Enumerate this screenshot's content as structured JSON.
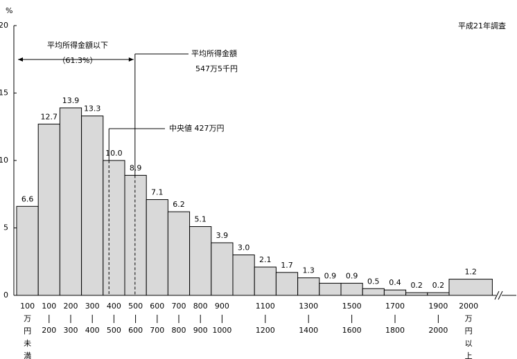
{
  "chart_data": {
    "type": "bar",
    "y_unit": "%",
    "note": "平成21年調査",
    "categories": [
      [
        "100",
        "万",
        "円",
        "未",
        "満"
      ],
      [
        "100",
        "200"
      ],
      [
        "200",
        "300"
      ],
      [
        "300",
        "400"
      ],
      [
        "400",
        "500"
      ],
      [
        "500",
        "600"
      ],
      [
        "600",
        "700"
      ],
      [
        "700",
        "800"
      ],
      [
        "800",
        "900"
      ],
      [
        "900",
        "1000"
      ],
      null,
      [
        "1100",
        "1200"
      ],
      null,
      [
        "1300",
        "1400"
      ],
      null,
      [
        "1500",
        "1600"
      ],
      null,
      [
        "1700",
        "1800"
      ],
      null,
      [
        "1900",
        "2000"
      ],
      [
        "2000",
        "万",
        "円",
        "以",
        "上"
      ]
    ],
    "values": [
      6.6,
      12.7,
      13.9,
      13.3,
      10.0,
      8.9,
      7.1,
      6.2,
      5.1,
      3.9,
      3.0,
      2.1,
      1.7,
      1.3,
      0.9,
      0.9,
      0.5,
      0.4,
      0.2,
      0.2,
      1.2
    ],
    "value_labels": [
      "6.6",
      "12.7",
      "13.9",
      "13.3",
      "10.0",
      "8.9",
      "7.1",
      "6.2",
      "5.1",
      "3.9",
      "3.0",
      "2.1",
      "1.7",
      "1.3",
      "0.9",
      "0.9",
      "0.5",
      "0.4",
      "0.2",
      "0.2",
      "1.2"
    ],
    "color": "#d9d9d9",
    "ylim": [
      0,
      20
    ],
    "yticks": [
      0,
      5,
      10,
      15,
      20
    ],
    "mean": {
      "value": 547.5,
      "label": "平均所得金額",
      "amount": "547万5千円",
      "below": "平均所得金額以下",
      "below_share": "（61.3%）"
    },
    "median": {
      "value": 427,
      "label": "中央値 427万円"
    }
  }
}
